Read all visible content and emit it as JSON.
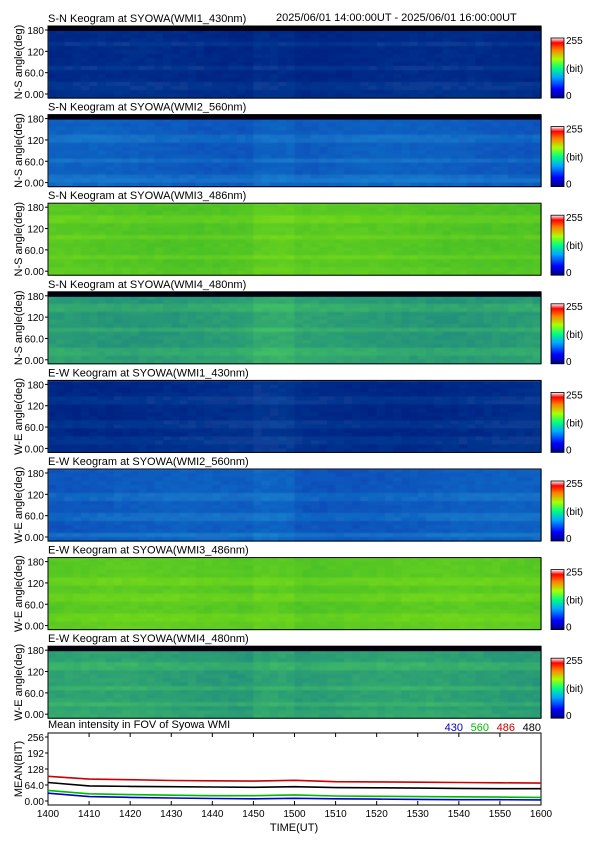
{
  "header": {
    "date_range": "2025/06/01 14:00:00UT - 2025/06/01 16:00:00UT"
  },
  "panels": [
    {
      "title": "S-N Keogram at SYOWA(WMI1_430nm)",
      "ylabel": "N-S angle(deg)",
      "palette": "blue",
      "brightness": 0.18,
      "bands": [
        0.22,
        0.55,
        0.8
      ],
      "top_black": true
    },
    {
      "title": "S-N Keogram at SYOWA(WMI2_560nm)",
      "ylabel": "N-S angle(deg)",
      "palette": "bluebright",
      "brightness": 0.34,
      "bands": [
        0.3,
        0.62,
        0.85
      ],
      "top_black": true
    },
    {
      "title": "S-N Keogram at SYOWA(WMI3_486nm)",
      "ylabel": "N-S angle(deg)",
      "palette": "green",
      "brightness": 0.6,
      "bands": [
        0.18,
        0.45,
        0.73
      ],
      "top_black": false
    },
    {
      "title": "S-N Keogram at SYOWA(WMI4_480nm)",
      "ylabel": "N-S angle(deg)",
      "palette": "teal",
      "brightness": 0.46,
      "bands": [
        0.2,
        0.5,
        0.8
      ],
      "top_black": true
    },
    {
      "title": "E-W Keogram at SYOWA(WMI1_430nm)",
      "ylabel": "W-E angle(deg)",
      "palette": "blue",
      "brightness": 0.2,
      "bands": [
        0.25,
        0.6,
        0.82
      ],
      "top_black": false
    },
    {
      "title": "E-W Keogram at SYOWA(WMI2_560nm)",
      "ylabel": "W-E angle(deg)",
      "palette": "bluebright",
      "brightness": 0.33,
      "bands": [
        0.35,
        0.65,
        0.88
      ],
      "top_black": false
    },
    {
      "title": "E-W Keogram at SYOWA(WMI3_486nm)",
      "ylabel": "W-E angle(deg)",
      "palette": "green",
      "brightness": 0.62,
      "bands": [
        0.3,
        0.52,
        0.8
      ],
      "top_black": false
    },
    {
      "title": "E-W Keogram at SYOWA(WMI4_480nm)",
      "ylabel": "W-E angle(deg)",
      "palette": "teal",
      "brightness": 0.48,
      "bands": [
        0.25,
        0.55,
        0.78
      ],
      "top_black": true
    }
  ],
  "keogram_y_ticks": [
    "180",
    "120",
    "60.0",
    "0.00"
  ],
  "colorbar": {
    "max": "255",
    "unit": "(bit)",
    "min": "0"
  },
  "chart_data": {
    "type": "line",
    "title": "Mean intensity in FOV of Syowa WMI",
    "xlabel": "TIME(UT)",
    "ylabel": "MEAN(BIT)",
    "xlim": [
      1400,
      1600
    ],
    "ylim": [
      0,
      256
    ],
    "x_ticks": [
      "1400",
      "1410",
      "1420",
      "1430",
      "1440",
      "1450",
      "1500",
      "1510",
      "1520",
      "1530",
      "1540",
      "1550",
      "1600"
    ],
    "y_ticks": [
      "256",
      "192",
      "128",
      "64.0",
      "0.00"
    ],
    "x": [
      0,
      10,
      20,
      30,
      40,
      50,
      60,
      70,
      80,
      90,
      100,
      110,
      120
    ],
    "legend_placement": "top-right",
    "series": [
      {
        "name": "430",
        "color": "#0000cc",
        "values": [
          42,
          30,
          27,
          25,
          23,
          22,
          24,
          22,
          21,
          20,
          19,
          19,
          18
        ]
      },
      {
        "name": "560",
        "color": "#00bb00",
        "values": [
          52,
          40,
          37,
          35,
          33,
          33,
          36,
          32,
          31,
          30,
          29,
          28,
          27
        ]
      },
      {
        "name": "486",
        "color": "#cc0000",
        "values": [
          102,
          92,
          90,
          87,
          86,
          85,
          88,
          83,
          82,
          81,
          80,
          79,
          78
        ]
      },
      {
        "name": "480",
        "color": "#000000",
        "values": [
          80,
          68,
          66,
          65,
          64,
          63,
          65,
          62,
          61,
          60,
          59,
          58,
          58
        ]
      }
    ]
  }
}
